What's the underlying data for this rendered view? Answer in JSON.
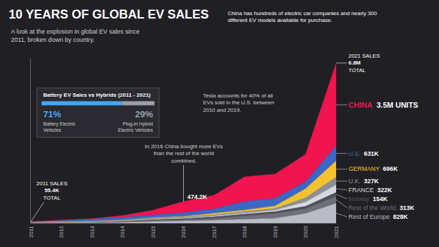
{
  "chart_data": {
    "type": "area",
    "title": "10 YEARS OF GLOBAL EV SALES",
    "subtitle": "A look at the explosion in global EV sales since 2011, broken down by country.",
    "x": [
      2011,
      2012,
      2013,
      2014,
      2015,
      2016,
      2017,
      2018,
      2019,
      2020,
      2021
    ],
    "xlim": [
      2011,
      2021
    ],
    "xticks": [
      2011,
      2012,
      2013,
      2014,
      2015,
      2016,
      2017,
      2018,
      2019,
      2020,
      2021
    ],
    "ylim": [
      0,
      7000
    ],
    "yticks": [],
    "grid": false,
    "stacked": true,
    "data_labels": true,
    "tick_labels": "x",
    "series": [
      {
        "name": "CHINA",
        "color": "#f0144f",
        "values": [
          5.5,
          10,
          15,
          75,
          210,
          474.2,
          580,
          1050,
          1030,
          1160,
          3500
        ],
        "value_labels": [
          null,
          null,
          null,
          null,
          null,
          "474.2K",
          null,
          null,
          null,
          null,
          "3.5M UNITS"
        ]
      },
      {
        "name": "U.S.",
        "color": "#3a68c4",
        "values": [
          17.8,
          53,
          97,
          118,
          114,
          157,
          195,
          361,
          327,
          296,
          631
        ],
        "value_labels": [
          null,
          null,
          null,
          null,
          null,
          null,
          null,
          null,
          null,
          null,
          "631K"
        ]
      },
      {
        "name": "GERMANY",
        "color": "#f2c230",
        "values": [
          2,
          3,
          6,
          13,
          24,
          25,
          55,
          68,
          108,
          395,
          696
        ],
        "value_labels": [
          null,
          null,
          null,
          null,
          null,
          null,
          null,
          null,
          null,
          null,
          "696K"
        ]
      },
      {
        "name": "U.K.",
        "color": "#8d9098",
        "values": [
          1,
          2.5,
          3.6,
          15,
          29,
          38,
          47,
          60,
          75,
          176,
          327
        ],
        "value_labels": [
          null,
          null,
          null,
          null,
          null,
          null,
          null,
          null,
          null,
          null,
          "327K"
        ]
      },
      {
        "name": "FRANCE",
        "color": "#d8d9de",
        "values": [
          2.6,
          5.7,
          9,
          12,
          22,
          29,
          37,
          46,
          61,
          185,
          322
        ],
        "value_labels": [
          null,
          null,
          null,
          null,
          null,
          null,
          null,
          null,
          null,
          null,
          "322K"
        ]
      },
      {
        "name": "Norway",
        "color": "#4f5158",
        "values": [
          1.5,
          4,
          8,
          20,
          34,
          45,
          62,
          73,
          80,
          105,
          154
        ],
        "value_labels": [
          null,
          null,
          null,
          null,
          null,
          null,
          null,
          null,
          null,
          null,
          "154K"
        ]
      },
      {
        "name": "Rest of the World",
        "color": "#6e7078",
        "values": [
          15,
          20,
          25,
          35,
          50,
          60,
          90,
          150,
          200,
          200,
          313
        ],
        "value_labels": [
          null,
          null,
          null,
          null,
          null,
          null,
          null,
          null,
          null,
          null,
          "313K"
        ]
      },
      {
        "name": "Rest of Europe",
        "color": "#b9bcc4",
        "values": [
          10,
          12,
          18,
          25,
          60,
          80,
          110,
          150,
          200,
          400,
          828
        ],
        "value_labels": [
          null,
          null,
          null,
          null,
          null,
          null,
          null,
          null,
          null,
          null,
          "828K"
        ]
      }
    ],
    "totals": [
      {
        "x": 2011,
        "caption": "2011 SALES",
        "value": 55.4,
        "value_label": "55.4K",
        "note": "TOTAL"
      },
      {
        "x": 2021,
        "caption": "2021 SALES",
        "value": 6800,
        "value_label": "6.8M",
        "note": "TOTAL"
      }
    ],
    "notes": [
      {
        "text": "China has hundreds of electric car companies and nearly 300 different EV models available for purchase."
      },
      {
        "text": "In 2016 China bought more EVs than the rest of the world combined.",
        "x": 2016,
        "series": "CHINA"
      },
      {
        "text": "Tesla accounts for 40% of all EVs sold in the U.S. between 2010 and 2019."
      }
    ],
    "bev_vs_hybrid": {
      "title": "Battery EV Sales vs Hybrids (2011 - 2021)",
      "items": [
        {
          "value": 71,
          "label": "71%",
          "name": "Battery Electric Vehicles",
          "color": "#3fa9f5"
        },
        {
          "value": 29,
          "label": "29%",
          "name": "Plug-in Hybrid Electric Vehicles",
          "color": "#9aa0a8"
        }
      ]
    }
  }
}
